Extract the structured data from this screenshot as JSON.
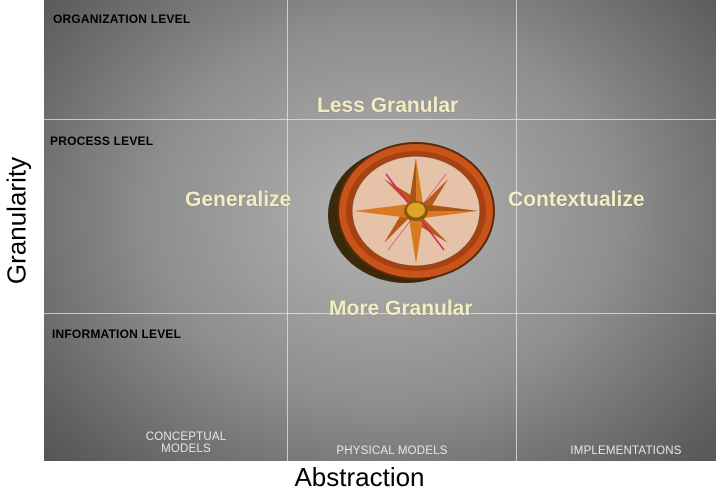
{
  "axes": {
    "y_label": "Granularity",
    "x_label": "Abstraction"
  },
  "rows": {
    "organization": "ORGANIZATION LEVEL",
    "process": "PROCESS LEVEL",
    "information": "INFORMATION LEVEL"
  },
  "columns": {
    "conceptual_line1": "CONCEPTUAL",
    "conceptual_line2": "MODELS",
    "physical": "PHYSICAL MODELS",
    "implementations": "IMPLEMENTATIONS"
  },
  "directions": {
    "up": "Less Granular",
    "down": "More Granular",
    "left": "Generalize",
    "right": "Contextualize"
  },
  "colors": {
    "direction_text": "#f3edc4",
    "compass_rim": "#c9541b",
    "compass_face": "#e6c2a8",
    "compass_star": "#c56a1f"
  },
  "icons": {
    "center": "compass-icon"
  }
}
